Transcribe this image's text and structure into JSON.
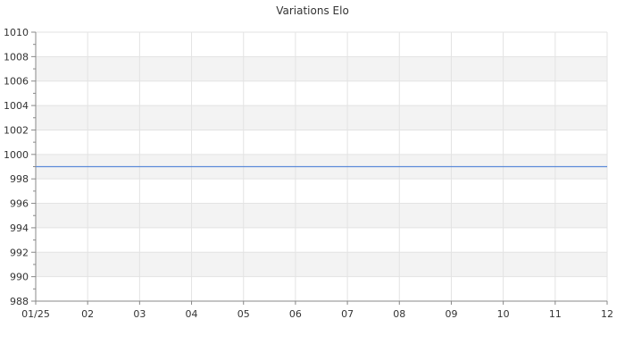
{
  "chart_data": {
    "type": "line",
    "title": "Variations Elo",
    "xlabel": "",
    "ylabel": "",
    "x_tick_labels": [
      "01/25",
      "02",
      "03",
      "04",
      "05",
      "06",
      "07",
      "08",
      "09",
      "10",
      "11",
      "12"
    ],
    "ylim": [
      988,
      1010
    ],
    "y_ticks": [
      988,
      990,
      992,
      994,
      996,
      998,
      1000,
      1002,
      1004,
      1006,
      1008,
      1010
    ],
    "grid": true,
    "series": [
      {
        "values": [
          999,
          999,
          999,
          999,
          999,
          999,
          999,
          999,
          999,
          999,
          999,
          999
        ]
      }
    ],
    "colors": {
      "line": "#5b8ad8",
      "band": "#f3f3f3",
      "grid": "#e3e3e3",
      "axis": "#888888"
    }
  }
}
